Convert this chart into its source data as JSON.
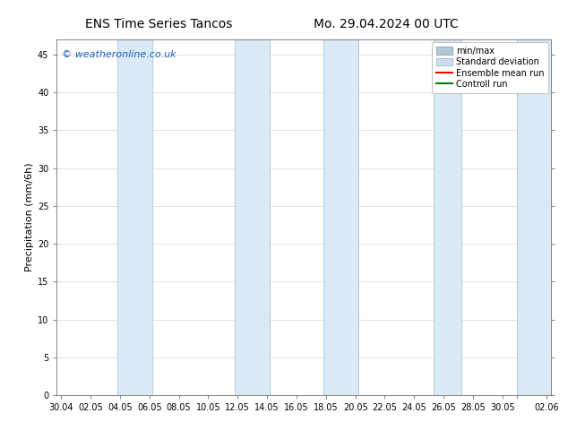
{
  "title_left": "ENS Time Series Tancos",
  "title_right": "Mo. 29.04.2024 00 UTC",
  "ylabel": "Precipitation (mm/6h)",
  "watermark": "© weatheronline.co.uk",
  "background_color": "#ffffff",
  "plot_bg_color": "#ffffff",
  "ylim": [
    0,
    47
  ],
  "yticks": [
    0,
    5,
    10,
    15,
    20,
    25,
    30,
    35,
    40,
    45
  ],
  "xtick_labels": [
    "30.04",
    "02.05",
    "04.05",
    "06.05",
    "08.05",
    "10.05",
    "12.05",
    "14.05",
    "16.05",
    "18.05",
    "20.05",
    "22.05",
    "24.05",
    "26.05",
    "28.05",
    "30.05",
    "",
    "02.06"
  ],
  "xtick_positions": [
    0,
    2,
    4,
    6,
    8,
    10,
    12,
    14,
    16,
    18,
    20,
    22,
    24,
    26,
    28,
    30,
    31,
    33
  ],
  "xlim": [
    -0.3,
    33.3
  ],
  "shade_color": "#daeaf5",
  "shade_edge_color": "#b8d0e4",
  "shade_bands": [
    [
      3.8,
      6.2
    ],
    [
      11.8,
      14.2
    ],
    [
      17.8,
      20.2
    ],
    [
      25.3,
      27.2
    ],
    [
      31.0,
      33.3
    ]
  ],
  "legend_labels": [
    "min/max",
    "Standard deviation",
    "Ensemble mean run",
    "Controll run"
  ],
  "legend_facecolors": [
    "#b0c8d8",
    "#ccdded",
    "#ff0000",
    "#008000"
  ],
  "legend_edgecolors": [
    "#8aaabb",
    "#aabbcc",
    "#ff0000",
    "#008000"
  ],
  "font_color": "#000000",
  "watermark_color": "#1a5fb4",
  "title_fontsize": 10,
  "tick_fontsize": 7,
  "ylabel_fontsize": 8,
  "legend_fontsize": 7,
  "watermark_fontsize": 8
}
